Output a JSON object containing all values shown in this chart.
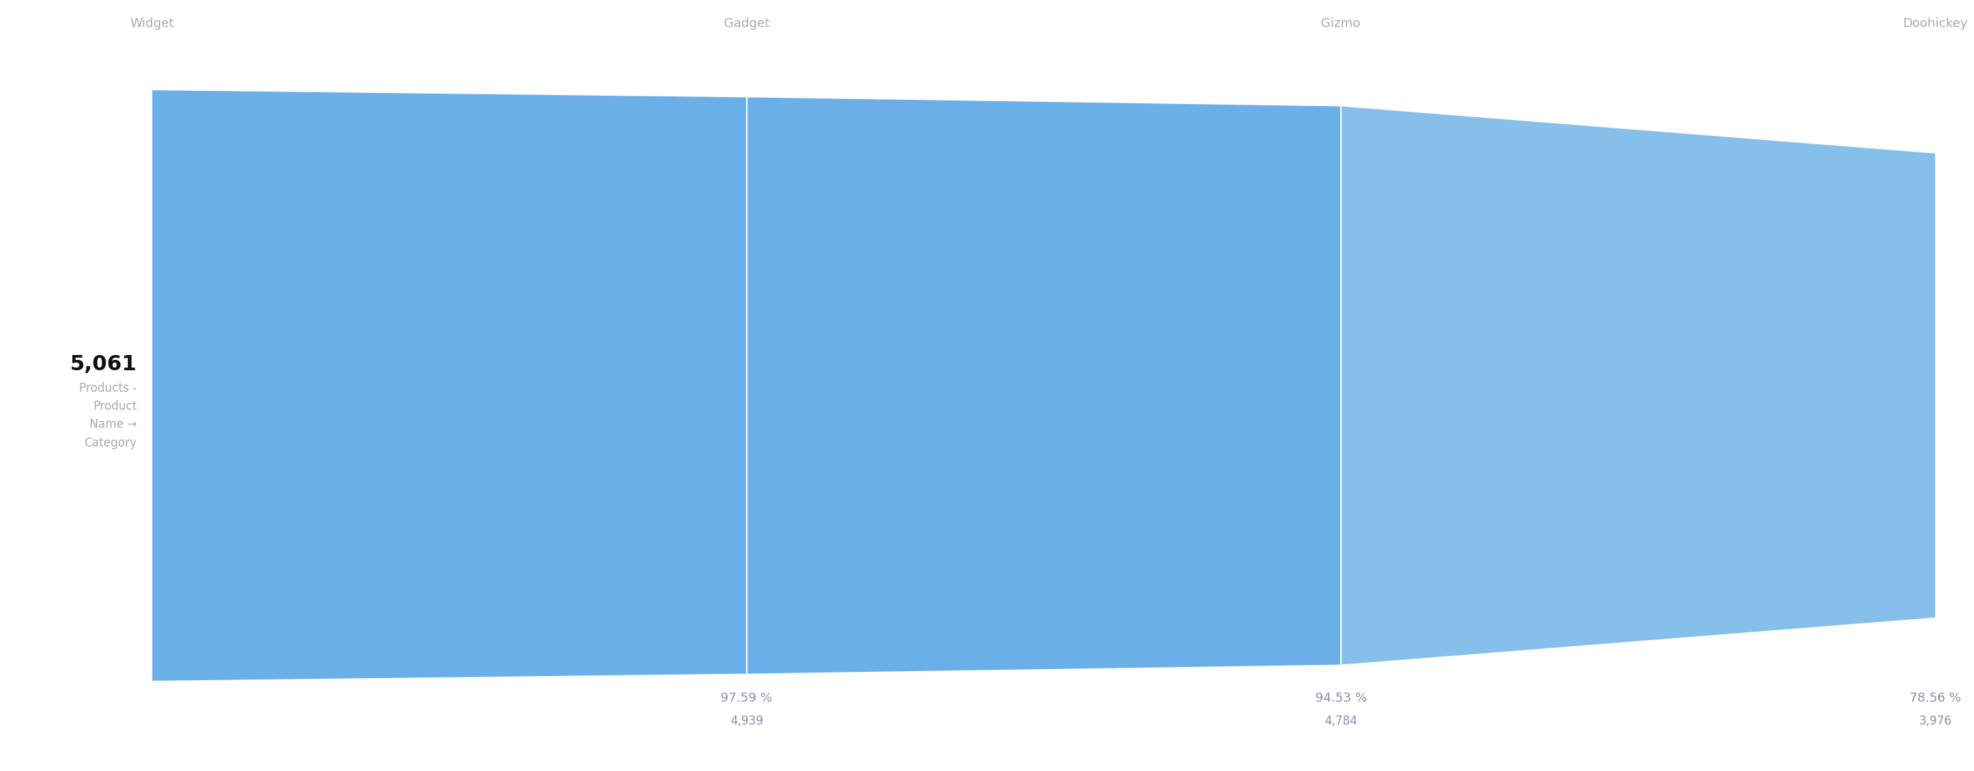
{
  "categories": [
    "Widget",
    "Gadget",
    "Gizmo",
    "Doohickey"
  ],
  "values": [
    5061,
    4939,
    4784,
    3976
  ],
  "percentages": [
    null,
    "97.59 %",
    "94.53 %",
    "78.56 %"
  ],
  "colors": [
    "#6aafe8",
    "#6aafe8",
    "#85bfea",
    "#a9ceef"
  ],
  "bg_color": "#ffffff",
  "label_color": "#aaaaaa",
  "value_label_bold": "5,061",
  "value_label_text": "Products -\nProduct\nName →\nCategory",
  "pct_color": "#8090b0",
  "count_color": "#8090b0",
  "label_fontsize": 13,
  "pct_fontsize": 13,
  "count_fontsize": 12,
  "bold_fontsize": 22,
  "sub_fontsize": 12,
  "divider_color": "#ffffff",
  "divider_lw": 1.5
}
